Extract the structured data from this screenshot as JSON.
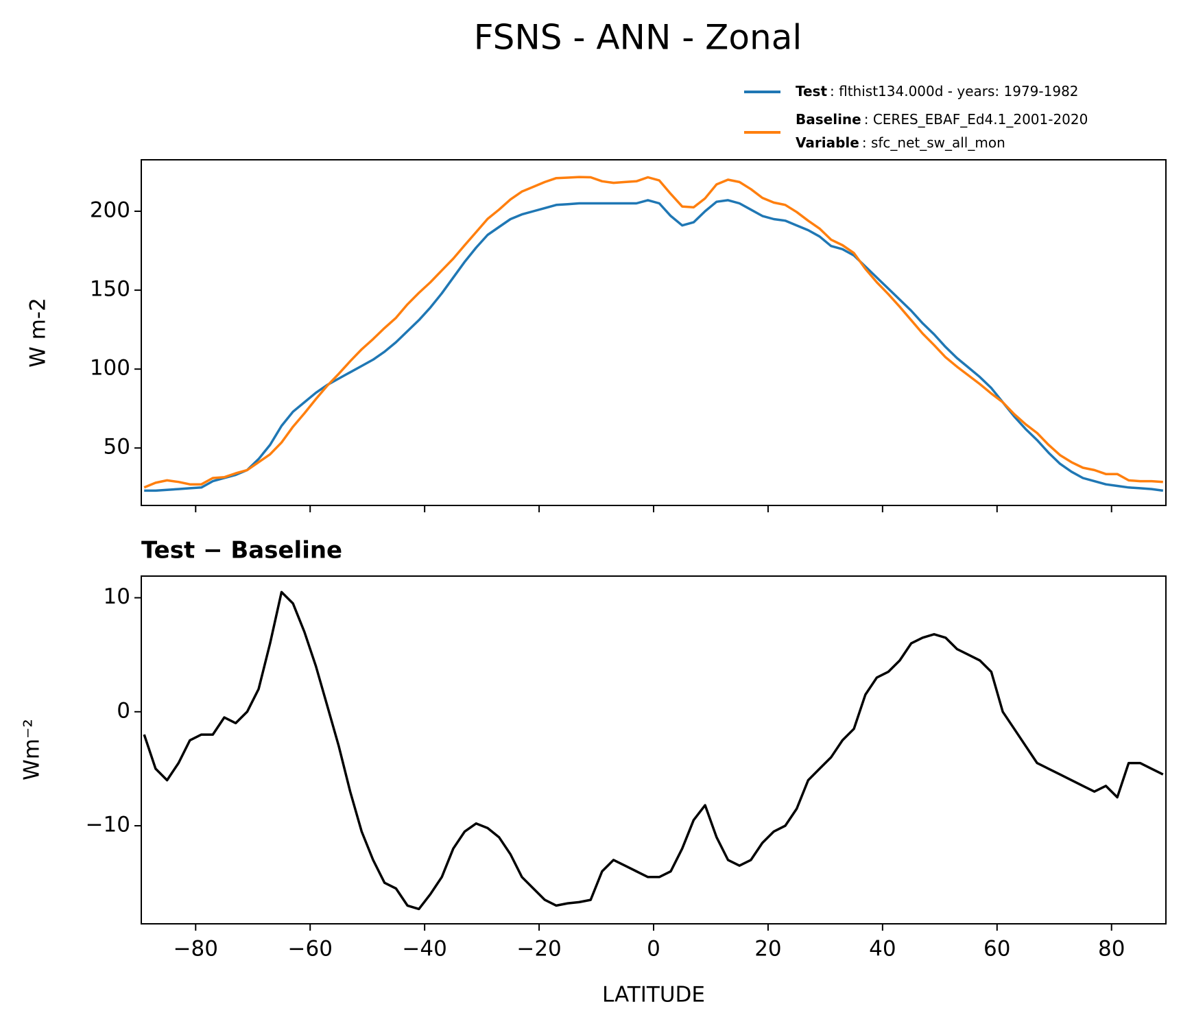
{
  "chart_data": [
    {
      "type": "line",
      "title": "FSNS - ANN - Zonal",
      "ylabel": "W m-2",
      "x": [
        -89,
        -87,
        -85,
        -83,
        -81,
        -79,
        -77,
        -75,
        -73,
        -71,
        -69,
        -67,
        -65,
        -63,
        -61,
        -59,
        -57,
        -55,
        -53,
        -51,
        -49,
        -47,
        -45,
        -43,
        -41,
        -39,
        -37,
        -35,
        -33,
        -31,
        -29,
        -27,
        -25,
        -23,
        -21,
        -19,
        -17,
        -15,
        -13,
        -11,
        -9,
        -7,
        -5,
        -3,
        -1,
        1,
        3,
        5,
        7,
        9,
        11,
        13,
        15,
        17,
        19,
        21,
        23,
        25,
        27,
        29,
        31,
        33,
        35,
        37,
        39,
        41,
        43,
        45,
        47,
        49,
        51,
        53,
        55,
        57,
        59,
        61,
        63,
        65,
        67,
        69,
        71,
        73,
        75,
        77,
        79,
        81,
        83,
        85,
        87,
        89
      ],
      "series": [
        {
          "name": "Test",
          "legend_text": ": flthist134.000d - years: 1979-1982",
          "color": "#1f77b4",
          "values": [
            23,
            23,
            23.5,
            24,
            24.5,
            25,
            29,
            31,
            33,
            36,
            43,
            52,
            64,
            73,
            79,
            85,
            90,
            94,
            98,
            102,
            106,
            111,
            117,
            124,
            131,
            139,
            148,
            158,
            168,
            177,
            185,
            190,
            195,
            198,
            200,
            202,
            204,
            204.5,
            205,
            205,
            205,
            205,
            205,
            205,
            207,
            205,
            197,
            191,
            193,
            200,
            206,
            207,
            205,
            201,
            197,
            195,
            194,
            191,
            188,
            184,
            178,
            176,
            172,
            165,
            158,
            151,
            144,
            137,
            129,
            122,
            114,
            107,
            101,
            95,
            88,
            79,
            70,
            62,
            55,
            47,
            40,
            35,
            31,
            29,
            27,
            26,
            25,
            24.5,
            24,
            23
          ]
        },
        {
          "name": "Baseline",
          "legend_text": ": CERES_EBAF_Ed4.1_2001-2020",
          "color": "#ff7f0e",
          "values": [
            25,
            28,
            29.5,
            28.5,
            27,
            27,
            31,
            31.5,
            34,
            36,
            41,
            46,
            53.5,
            63.5,
            72,
            81,
            89.5,
            97,
            105,
            112.5,
            119,
            126,
            132.5,
            141,
            148.3,
            155,
            162.5,
            170,
            178.5,
            186.8,
            195.2,
            201,
            207.5,
            212.5,
            215.5,
            218.5,
            221,
            221.3,
            221.7,
            221.5,
            219,
            218,
            218.5,
            219,
            221.5,
            219.5,
            211,
            203,
            202.5,
            208.2,
            217,
            220,
            218.5,
            214,
            208.5,
            205.5,
            204,
            199.5,
            194,
            189,
            182,
            178.5,
            173.5,
            163.5,
            155,
            147.5,
            139.5,
            131,
            122.5,
            115.2,
            107.5,
            101.5,
            96,
            90.5,
            84.5,
            79,
            71.5,
            65,
            59.5,
            52,
            45.5,
            41,
            37.5,
            36,
            33.5,
            33.5,
            29.5,
            29,
            29,
            28.5
          ]
        }
      ],
      "legend_extra": {
        "label": "Variable",
        "text": ": sfc_net_sw_all_mon"
      },
      "xlim": [
        -89.5,
        89.5
      ],
      "xticks": [
        -80,
        -60,
        -40,
        -20,
        0,
        20,
        40,
        60,
        80
      ],
      "ylim": [
        13.6,
        232.6
      ],
      "yticks": [
        50,
        100,
        150,
        200
      ]
    },
    {
      "type": "line",
      "title": "Test − Baseline",
      "ylabel": "Wm⁻²",
      "xlabel": "LATITUDE",
      "x": [
        -89,
        -87,
        -85,
        -83,
        -81,
        -79,
        -77,
        -75,
        -73,
        -71,
        -69,
        -67,
        -65,
        -63,
        -61,
        -59,
        -57,
        -55,
        -53,
        -51,
        -49,
        -47,
        -45,
        -43,
        -41,
        -39,
        -37,
        -35,
        -33,
        -31,
        -29,
        -27,
        -25,
        -23,
        -21,
        -19,
        -17,
        -15,
        -13,
        -11,
        -9,
        -7,
        -5,
        -3,
        -1,
        1,
        3,
        5,
        7,
        9,
        11,
        13,
        15,
        17,
        19,
        21,
        23,
        25,
        27,
        29,
        31,
        33,
        35,
        37,
        39,
        41,
        43,
        45,
        47,
        49,
        51,
        53,
        55,
        57,
        59,
        61,
        63,
        65,
        67,
        69,
        71,
        73,
        75,
        77,
        79,
        81,
        83,
        85,
        87,
        89
      ],
      "series": [
        {
          "color": "#000000",
          "values": [
            -2,
            -5,
            -6,
            -4.5,
            -2.5,
            -2,
            -2,
            -0.5,
            -1,
            0,
            2,
            6,
            10.5,
            9.5,
            7,
            4,
            0.5,
            -3,
            -7,
            -10.5,
            -13,
            -15,
            -15.5,
            -17,
            -17.3,
            -16,
            -14.5,
            -12,
            -10.5,
            -9.8,
            -10.2,
            -11,
            -12.5,
            -14.5,
            -15.5,
            -16.5,
            -17,
            -16.8,
            -16.7,
            -16.5,
            -14,
            -13,
            -13.5,
            -14,
            -14.5,
            -14.5,
            -14,
            -12,
            -9.5,
            -8.2,
            -11,
            -13,
            -13.5,
            -13,
            -11.5,
            -10.5,
            -10,
            -8.5,
            -6,
            -5,
            -4,
            -2.5,
            -1.5,
            1.5,
            3,
            3.5,
            4.5,
            6,
            6.5,
            6.8,
            6.5,
            5.5,
            5,
            4.5,
            3.5,
            0,
            -1.5,
            -3,
            -4.5,
            -5,
            -5.5,
            -6,
            -6.5,
            -7,
            -6.5,
            -7.5,
            -4.5,
            -4.5,
            -5,
            -5.5
          ]
        }
      ],
      "xlim": [
        -89.5,
        89.5
      ],
      "xticks": [
        {
          "value": -80,
          "label": "−80"
        },
        {
          "value": -60,
          "label": "−60"
        },
        {
          "value": -40,
          "label": "−40"
        },
        {
          "value": -20,
          "label": "−20"
        },
        0,
        20,
        40,
        60,
        80
      ],
      "ylim": [
        -18.6,
        11.9
      ],
      "yticks": [
        {
          "value": -10,
          "label": "−10"
        },
        0,
        10
      ]
    }
  ]
}
